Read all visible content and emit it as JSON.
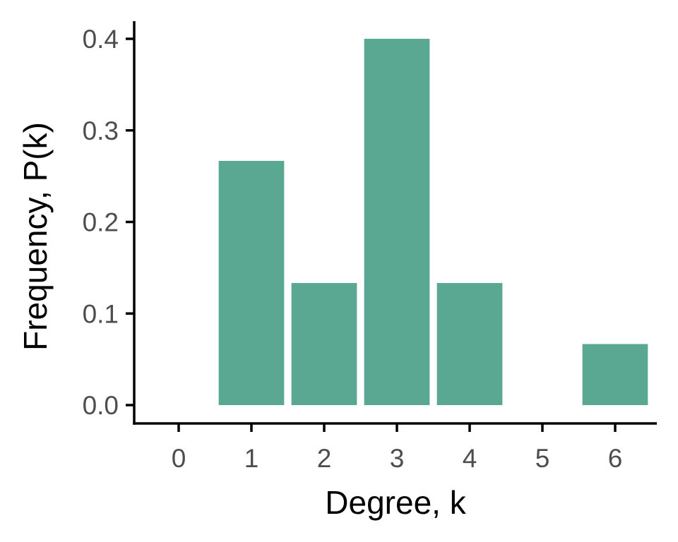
{
  "chart_data": {
    "type": "bar",
    "categories": [
      "0",
      "1",
      "2",
      "3",
      "4",
      "5",
      "6"
    ],
    "x": [
      0,
      1,
      2,
      3,
      4,
      5,
      6
    ],
    "values": [
      0,
      0.2667,
      0.1333,
      0.4,
      0.1333,
      0,
      0.0667
    ],
    "xlabel": "Degree, k",
    "ylabel": "Frequency, P(k)",
    "xlim": [
      -0.6,
      6.6
    ],
    "ylim": [
      0,
      0.42
    ],
    "yticks": [
      0.0,
      0.1,
      0.2,
      0.3,
      0.4
    ],
    "ytick_labels": [
      "0.0",
      "0.1",
      "0.2",
      "0.3",
      "0.4"
    ],
    "bar_color": "#5aa891",
    "grid": false,
    "legend": "none"
  }
}
